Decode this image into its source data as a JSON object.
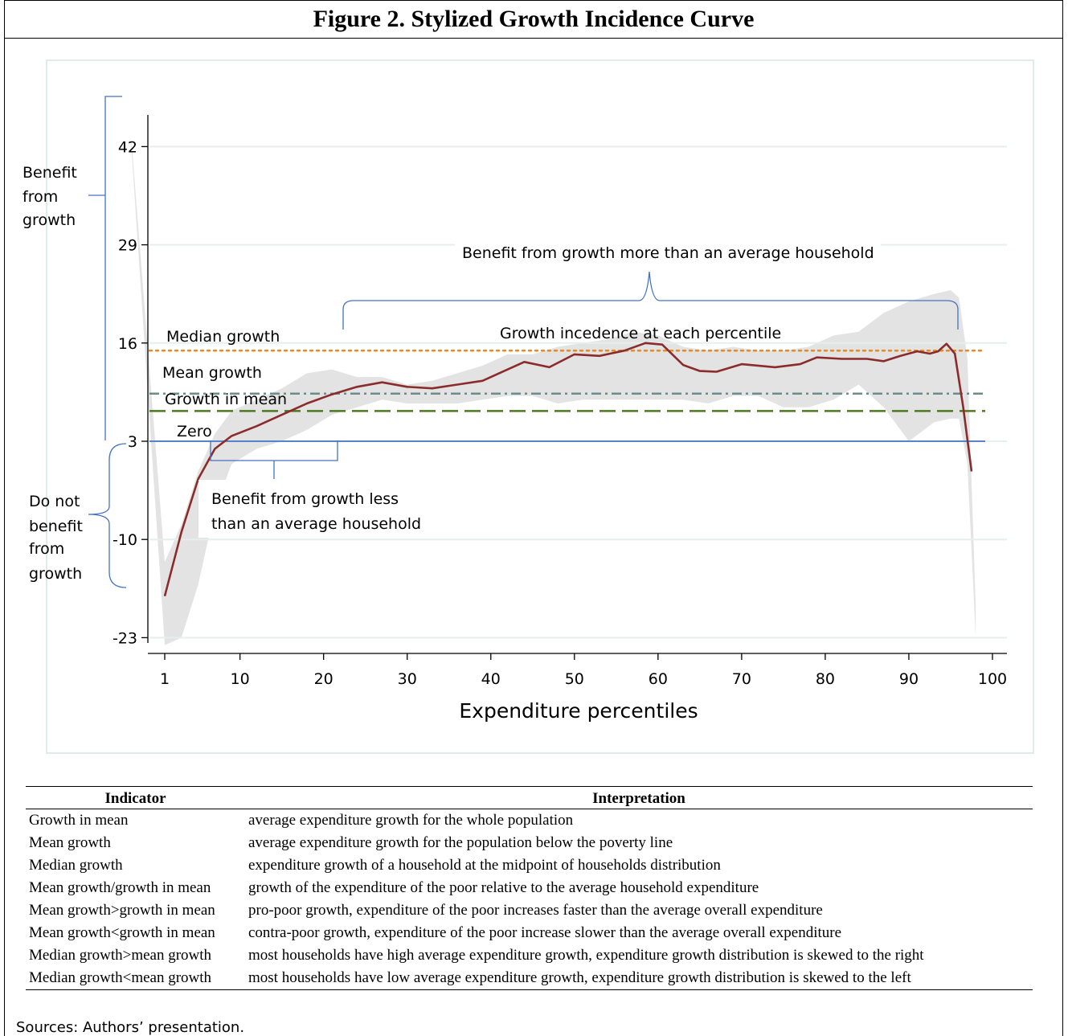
{
  "title": "Figure 2. Stylized Growth Incidence Curve",
  "chart_data": {
    "type": "line",
    "xlabel": "Expenditure percentiles",
    "ylabel": "",
    "xlim": [
      0,
      101
    ],
    "ylim": [
      -23,
      44
    ],
    "xticks": [
      1,
      10,
      20,
      30,
      40,
      50,
      60,
      70,
      80,
      90,
      100
    ],
    "yticks": [
      -23,
      -10,
      3,
      16,
      29,
      42
    ],
    "grid": "horizontal",
    "series": [
      {
        "name": "Growth incedence at each percentile",
        "color": "#8b2c2c",
        "x": [
          1,
          3,
          5,
          7,
          9,
          12,
          15,
          18,
          21,
          24,
          27,
          30,
          33,
          36,
          39,
          42,
          44,
          47,
          50,
          53,
          56,
          58.5,
          60.5,
          63,
          65,
          67,
          70,
          74,
          77,
          79,
          82,
          85,
          87,
          89,
          91,
          92.5,
          93.5,
          94.5,
          95.5,
          96.5,
          97.5
        ],
        "y": [
          -17.5,
          -9,
          -2,
          2,
          3.7,
          5,
          6.5,
          8,
          9.2,
          10.2,
          10.8,
          10.2,
          10,
          10.5,
          11,
          12.5,
          13.5,
          12.8,
          14.5,
          14.3,
          15,
          16,
          15.8,
          13.1,
          12.3,
          12.2,
          13.2,
          12.8,
          13.2,
          14.1,
          13.9,
          13.9,
          13.6,
          14.3,
          14.9,
          14.6,
          14.9,
          15.9,
          14.6,
          7.5,
          -1
        ]
      }
    ],
    "confidence_band": {
      "color": "#e3e3e3",
      "x": [
        -3,
        1,
        3,
        5,
        7,
        9,
        12,
        15,
        18,
        21,
        24,
        27,
        30,
        33,
        36,
        39,
        42,
        45,
        48,
        51,
        54,
        57,
        60,
        63,
        66,
        69,
        72,
        75,
        78,
        81,
        84,
        87,
        90,
        93,
        95,
        96,
        97,
        98
      ],
      "upper": [
        43,
        -13,
        -8,
        -1,
        4,
        7,
        8.5,
        10,
        12,
        12.5,
        11.5,
        11.5,
        10.5,
        11,
        12,
        13,
        14.5,
        14.5,
        15.5,
        16,
        16.5,
        17.5,
        17,
        15.5,
        15,
        15.5,
        15,
        15,
        15.5,
        17,
        17.5,
        20,
        21.5,
        22.5,
        23,
        22,
        14,
        -19
      ],
      "lower": [
        42,
        -24,
        -23,
        -16,
        -6,
        0,
        2,
        3,
        4.5,
        6.5,
        7.5,
        8.5,
        8,
        8,
        8,
        8.5,
        9,
        9,
        8,
        8.5,
        8.5,
        8.5,
        8.5,
        8.5,
        8,
        9,
        9,
        7.5,
        7.5,
        8.5,
        10.5,
        7.5,
        3,
        5.5,
        6,
        6,
        0,
        -23
      ]
    },
    "reference_lines": [
      {
        "label": "Median growth",
        "y": 15,
        "color": "#e98a1c",
        "style": "dotted"
      },
      {
        "label": "Mean growth",
        "y": 9.3,
        "color": "#6c8c8c",
        "style": "dashdot"
      },
      {
        "label": "Growth  in mean",
        "y": 7,
        "color": "#4d7a1f",
        "style": "dashed"
      },
      {
        "label": "Zero",
        "y": 3,
        "color": "#4472c4",
        "style": "solid"
      }
    ],
    "annotations": {
      "benefit": "Benefit from growth",
      "benefit_lines": [
        "Benefit",
        "from",
        "growth"
      ],
      "no_benefit_lines": [
        "Do not",
        "benefit",
        "from",
        "growth"
      ],
      "more": "Benefit from growth more  than an average household",
      "less_lines": [
        "Benefit from growth  less",
        "than an average household"
      ],
      "curve_label": "Growth  incedence at each percentile"
    }
  },
  "table": {
    "headers": [
      "Indicator",
      "Interpretation"
    ],
    "rows": [
      [
        "Growth in mean",
        "average expenditure growth for the whole population"
      ],
      [
        "Mean growth",
        "average expenditure growth for the population below the poverty line"
      ],
      [
        "Median growth",
        "expenditure growth of a household at the midpoint of households distribution"
      ],
      [
        "Mean growth/growth in mean",
        "growth of the expenditure of the poor relative to the average household expenditure"
      ],
      [
        "Mean growth>growth in mean",
        "pro-poor growth, expenditure of the poor increases faster than the average overall expenditure"
      ],
      [
        "Mean growth<growth in mean",
        "contra-poor growth, expenditure of the poor increase slower than the average overall expenditure"
      ],
      [
        "Median growth>mean growth",
        "most households have high average expenditure growth, expenditure growth distribution is skewed to the right"
      ],
      [
        "Median growth<mean growth",
        "most households have low average expenditure growth, expenditure growth distribution is skewed to the left"
      ]
    ]
  },
  "source": "Sources: Authors’ presentation."
}
